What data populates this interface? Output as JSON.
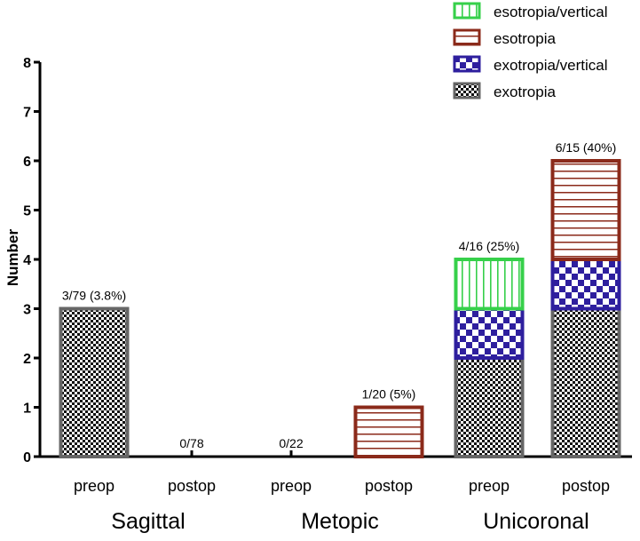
{
  "chart_data": {
    "type": "bar",
    "stacked": true,
    "ylabel": "Number",
    "ylim": [
      0,
      8
    ],
    "yticks": [
      0,
      1,
      2,
      3,
      4,
      5,
      6,
      7,
      8
    ],
    "groups": [
      "Sagittal",
      "Metopic",
      "Unicoronal"
    ],
    "categories": [
      "preop",
      "postop",
      "preop",
      "postop",
      "preop",
      "postop"
    ],
    "bar_labels": [
      "3/79 (3.8%)",
      "0/78",
      "0/22",
      "1/20 (5%)",
      "4/16 (25%)",
      "6/15 (40%)"
    ],
    "legend_position": "top-right",
    "grid": false,
    "series": [
      {
        "name": "exotropia",
        "values": [
          3,
          0,
          0,
          0,
          2,
          3
        ],
        "color": "#666666",
        "pattern": "checker-fine"
      },
      {
        "name": "exotropia/vertical",
        "values": [
          0,
          0,
          0,
          0,
          1,
          1
        ],
        "color": "#2e1f9e",
        "pattern": "checker-large"
      },
      {
        "name": "esotropia",
        "values": [
          0,
          0,
          0,
          1,
          0,
          2
        ],
        "color": "#8b2a1a",
        "pattern": "horizontal-lines"
      },
      {
        "name": "esotropia/vertical",
        "values": [
          0,
          0,
          0,
          0,
          1,
          0
        ],
        "color": "#36d04a",
        "pattern": "vertical-lines"
      }
    ]
  }
}
